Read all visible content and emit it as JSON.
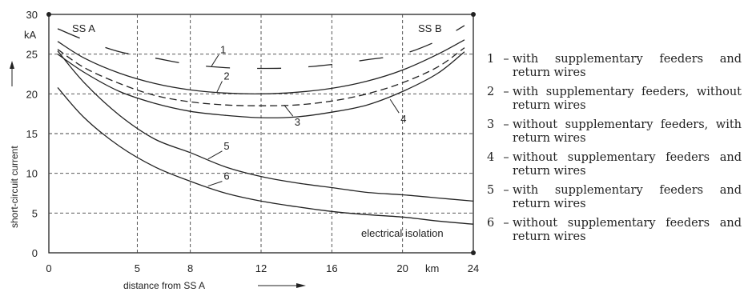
{
  "chart_data": {
    "type": "line",
    "ylabel": "short-circuit current",
    "y_unit": "kA",
    "xlabel": "distance from SS A",
    "x_unit": "km",
    "xlim": [
      0,
      24
    ],
    "ylim": [
      0,
      30
    ],
    "x_ticks": [
      "0",
      "5",
      "8",
      "12",
      "16",
      "20",
      "24"
    ],
    "y_ticks": [
      "0",
      "5",
      "10",
      "15",
      "20",
      "25",
      "30"
    ],
    "grid": true,
    "annotations": {
      "ss_a": "SS A",
      "ss_b": "SS B",
      "isolation": "electrical isolation"
    },
    "series": [
      {
        "name": "1",
        "style": "long-dash",
        "x": [
          0.5,
          2,
          4,
          6,
          8,
          10,
          12,
          14,
          16,
          18,
          20,
          22,
          23.5
        ],
        "y": [
          28.2,
          26.8,
          25.3,
          24.5,
          23.7,
          23.3,
          23.2,
          23.3,
          23.7,
          24.3,
          25.0,
          26.7,
          28.6
        ]
      },
      {
        "name": "2",
        "style": "solid",
        "x": [
          0.5,
          2,
          4,
          6,
          8,
          10,
          12,
          14,
          16,
          18,
          20,
          22,
          23.5
        ],
        "y": [
          26.6,
          24.5,
          22.6,
          21.3,
          20.5,
          20.1,
          20.0,
          20.2,
          20.7,
          21.6,
          23.0,
          25.0,
          26.8
        ]
      },
      {
        "name": "3",
        "style": "short-dash",
        "x": [
          0.5,
          2,
          4,
          6,
          8,
          10,
          12,
          14,
          16,
          18,
          20,
          22,
          23.5
        ],
        "y": [
          25.6,
          23.3,
          21.3,
          19.8,
          19.0,
          18.6,
          18.5,
          18.6,
          19.1,
          20.0,
          21.4,
          23.4,
          25.8
        ]
      },
      {
        "name": "4",
        "style": "solid",
        "x": [
          0.5,
          2,
          4,
          6,
          8,
          10,
          12,
          14,
          16,
          18,
          20,
          22,
          23.5
        ],
        "y": [
          25.0,
          22.7,
          20.3,
          18.8,
          17.8,
          17.3,
          17.0,
          17.1,
          17.7,
          18.6,
          20.3,
          22.6,
          25.3
        ]
      },
      {
        "name": "5",
        "style": "solid",
        "x": [
          0.5,
          2,
          4,
          6,
          8,
          10,
          12,
          14,
          16,
          18,
          20,
          22,
          24
        ],
        "y": [
          25.4,
          21.4,
          17.3,
          14.3,
          12.6,
          10.8,
          9.6,
          8.8,
          8.2,
          7.6,
          7.3,
          6.9,
          6.5
        ]
      },
      {
        "name": "6",
        "style": "solid",
        "x": [
          0.5,
          2,
          4,
          6,
          8,
          10,
          12,
          14,
          16,
          18,
          20,
          22,
          24
        ],
        "y": [
          20.8,
          17.0,
          13.4,
          10.8,
          9.0,
          7.5,
          6.5,
          5.8,
          5.2,
          4.8,
          4.5,
          4.0,
          3.6
        ]
      }
    ]
  },
  "legend": [
    {
      "num": "1",
      "text": "with supplementary feeders and return wires"
    },
    {
      "num": "2",
      "text": "with supplementary feeders, without return wires"
    },
    {
      "num": "3",
      "text": "without supplementary feeders, with return wires"
    },
    {
      "num": "4",
      "text": "without supplementary feeders and return wires"
    },
    {
      "num": "5",
      "text": "with supplementary feeders and return wires"
    },
    {
      "num": "6",
      "text": "without supplementary feeders and return wires"
    }
  ]
}
